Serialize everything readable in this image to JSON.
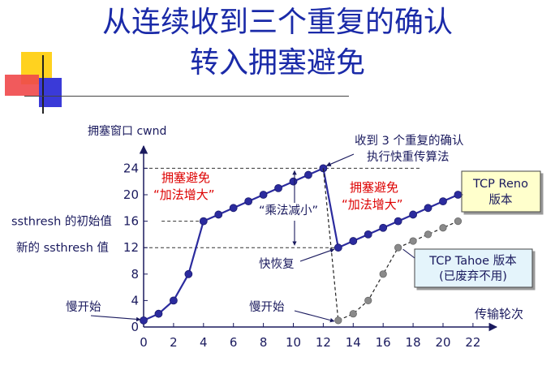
{
  "slide": {
    "title_line1": "从连续收到三个重复的确认",
    "title_line2": "转入拥塞避免"
  },
  "chart_data": {
    "type": "line",
    "ylabel": "拥塞窗口 cwnd",
    "xlabel": "传输轮次",
    "xlim": [
      0,
      22
    ],
    "ylim": [
      0,
      24
    ],
    "x_ticks": [
      0,
      2,
      4,
      6,
      8,
      10,
      12,
      14,
      16,
      18,
      20,
      22
    ],
    "y_ticks": [
      0,
      4,
      8,
      12,
      16,
      20,
      24
    ],
    "series": [
      {
        "name": "TCP Reno 版本",
        "style": "solid",
        "color": "#2b2b9e",
        "x": [
          0,
          1,
          2,
          3,
          4,
          5,
          6,
          7,
          8,
          9,
          10,
          11,
          12,
          13,
          14,
          15,
          16,
          17,
          18,
          19,
          20,
          21
        ],
        "y": [
          1,
          2,
          4,
          8,
          16,
          17,
          18,
          19,
          20,
          21,
          22,
          23,
          24,
          12,
          13,
          14,
          15,
          16,
          17,
          18,
          19,
          20
        ]
      },
      {
        "name": "TCP Tahoe 版本",
        "style": "dashed",
        "color": "#808080",
        "x": [
          12,
          13,
          14,
          15,
          16,
          17,
          18,
          19,
          20,
          21
        ],
        "y": [
          24,
          1,
          2,
          4,
          8,
          12,
          13,
          14,
          15,
          16
        ]
      }
    ],
    "reference_lines": [
      {
        "y": 24,
        "from_x": 0,
        "to_x": 18.5
      },
      {
        "y": 16,
        "from_x": 1.2,
        "to_x": 4
      },
      {
        "y": 12,
        "from_x": 0,
        "to_x": 13
      }
    ],
    "y_annotations": [
      {
        "y": 16,
        "text": "ssthresh 的初始值"
      },
      {
        "y": 12,
        "text": "新的 ssthresh 值"
      }
    ],
    "annotations": {
      "triple_ack": [
        "收到 3 个重复的确认",
        "执行快重传算法"
      ],
      "ca1": [
        "拥塞避免",
        "“加法增大”"
      ],
      "ca2": [
        "拥塞避免",
        "“加法增大”"
      ],
      "md": "“乘法减小”",
      "fast_recovery": "快恢复",
      "slow_start_1": "慢开始",
      "slow_start_2": "慢开始"
    },
    "legend": {
      "reno": [
        "TCP Reno",
        "版本"
      ],
      "tahoe": [
        "TCP Tahoe 版本",
        "(已废弃不用)"
      ]
    },
    "colors": {
      "axis": "#1a1a5e",
      "annotation_red": "#dd0000",
      "annotation_blue": "#1a2a8a",
      "legend_bg": "#ffffcc",
      "legend2_bg": "#e4f4fb"
    }
  }
}
